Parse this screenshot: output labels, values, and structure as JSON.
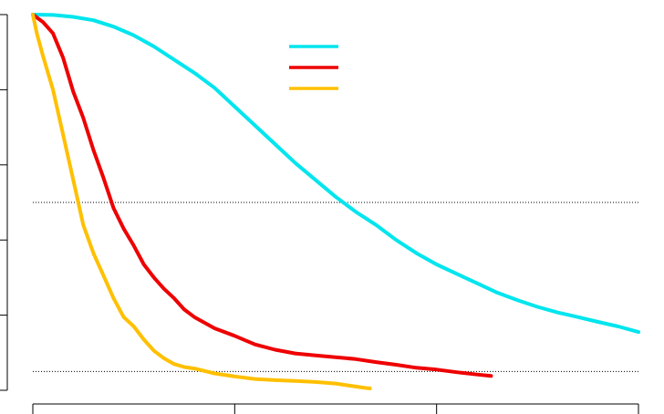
{
  "chart_data": {
    "type": "line",
    "xlim": [
      0,
      3
    ],
    "ylim": [
      0,
      1
    ],
    "x_ticks": [
      0,
      1,
      2,
      3
    ],
    "y_ticks": [
      0,
      0.2,
      0.4,
      0.6,
      0.8,
      1.0
    ],
    "grid": false,
    "legend": "top-center",
    "reference_lines_y": [
      0.5,
      0.05
    ],
    "series": [
      {
        "color": "#00e5ee",
        "x": [
          0,
          0.1,
          0.2,
          0.3,
          0.4,
          0.5,
          0.6,
          0.7,
          0.8,
          0.9,
          1.0,
          1.1,
          1.2,
          1.3,
          1.4,
          1.5,
          1.6,
          1.7,
          1.8,
          1.9,
          2.0,
          2.1,
          2.2,
          2.3,
          2.4,
          2.5,
          2.6,
          2.7,
          2.8,
          2.9,
          3.0
        ],
        "y": [
          1.0,
          0.999,
          0.994,
          0.985,
          0.968,
          0.945,
          0.915,
          0.88,
          0.845,
          0.805,
          0.755,
          0.705,
          0.655,
          0.605,
          0.56,
          0.515,
          0.475,
          0.44,
          0.4,
          0.365,
          0.335,
          0.31,
          0.285,
          0.26,
          0.24,
          0.222,
          0.207,
          0.195,
          0.182,
          0.17,
          0.155
        ]
      },
      {
        "color": "#ee0000",
        "x": [
          0,
          0.05,
          0.1,
          0.15,
          0.2,
          0.25,
          0.3,
          0.35,
          0.4,
          0.45,
          0.5,
          0.55,
          0.6,
          0.65,
          0.7,
          0.75,
          0.8,
          0.9,
          1.0,
          1.1,
          1.2,
          1.3,
          1.4,
          1.5,
          1.6,
          1.7,
          1.8,
          1.9,
          2.0,
          2.1,
          2.2,
          2.27
        ],
        "y": [
          1.0,
          0.98,
          0.95,
          0.885,
          0.795,
          0.725,
          0.64,
          0.565,
          0.485,
          0.43,
          0.385,
          0.335,
          0.3,
          0.27,
          0.245,
          0.215,
          0.195,
          0.165,
          0.145,
          0.122,
          0.108,
          0.098,
          0.093,
          0.088,
          0.083,
          0.075,
          0.068,
          0.06,
          0.055,
          0.048,
          0.042,
          0.038
        ]
      },
      {
        "color": "#ffc000",
        "x": [
          0,
          0.02,
          0.05,
          0.1,
          0.15,
          0.2,
          0.25,
          0.3,
          0.35,
          0.4,
          0.45,
          0.5,
          0.55,
          0.6,
          0.65,
          0.7,
          0.75,
          0.8,
          0.9,
          1.0,
          1.1,
          1.2,
          1.3,
          1.4,
          1.5,
          1.6,
          1.65,
          1.67
        ],
        "y": [
          1.0,
          0.95,
          0.89,
          0.8,
          0.68,
          0.56,
          0.44,
          0.365,
          0.305,
          0.245,
          0.195,
          0.17,
          0.135,
          0.105,
          0.085,
          0.07,
          0.062,
          0.058,
          0.045,
          0.037,
          0.03,
          0.027,
          0.025,
          0.022,
          0.018,
          0.01,
          0.006,
          0.005
        ]
      }
    ]
  }
}
